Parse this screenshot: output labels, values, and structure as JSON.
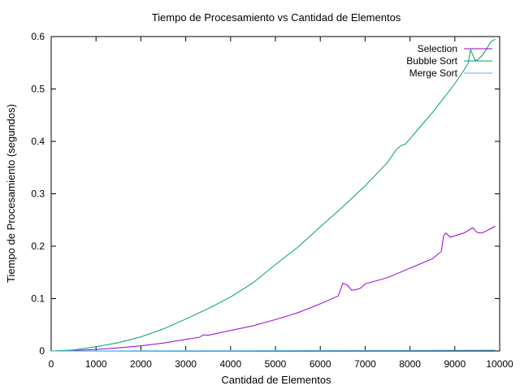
{
  "chart_data": {
    "type": "line",
    "title": "Tiempo de Procesamiento vs Cantidad de Elementos",
    "xlabel": "Cantidad de Elementos",
    "ylabel": "Tiempo de Procesamiento (segundos)",
    "xlim": [
      0,
      10000
    ],
    "ylim": [
      0,
      0.6
    ],
    "x_ticks": [
      0,
      1000,
      2000,
      3000,
      4000,
      5000,
      6000,
      7000,
      8000,
      9000,
      10000
    ],
    "y_ticks": [
      0,
      0.1,
      0.2,
      0.3,
      0.4,
      0.5,
      0.6
    ],
    "x_tick_labels": [
      "0",
      "1000",
      "2000",
      "3000",
      "4000",
      "5000",
      "6000",
      "7000",
      "8000",
      "9000",
      "10000"
    ],
    "y_tick_labels": [
      "0",
      "0.1",
      "0.2",
      "0.3",
      "0.4",
      "0.5",
      "0.6"
    ],
    "grid": false,
    "legend": "top-right",
    "series": [
      {
        "name": "Selection",
        "color": "#9400d3",
        "x": [
          0,
          500,
          1000,
          1500,
          2000,
          2500,
          3000,
          3300,
          3400,
          3500,
          4000,
          4500,
          5000,
          5500,
          6000,
          6400,
          6500,
          6600,
          6700,
          6800,
          6900,
          7000,
          7500,
          8000,
          8500,
          8700,
          8750,
          8800,
          8900,
          9000,
          9200,
          9300,
          9400,
          9500,
          9600,
          9700,
          9900
        ],
        "values": [
          0,
          0.001,
          0.003,
          0.006,
          0.01,
          0.015,
          0.022,
          0.026,
          0.031,
          0.03,
          0.039,
          0.048,
          0.06,
          0.073,
          0.09,
          0.105,
          0.129,
          0.126,
          0.116,
          0.117,
          0.12,
          0.128,
          0.14,
          0.158,
          0.176,
          0.19,
          0.22,
          0.225,
          0.217,
          0.22,
          0.225,
          0.23,
          0.235,
          0.226,
          0.225,
          0.229,
          0.238
        ]
      },
      {
        "name": "Bubble Sort",
        "color": "#009e73",
        "x": [
          0,
          500,
          1000,
          1500,
          2000,
          2500,
          3000,
          3500,
          4000,
          4500,
          5000,
          5500,
          6000,
          6500,
          7000,
          7500,
          7700,
          7800,
          7900,
          8000,
          8500,
          9000,
          9200,
          9300,
          9350,
          9450,
          9500,
          9600,
          9700,
          9800,
          9900
        ],
        "values": [
          0,
          0.002,
          0.008,
          0.016,
          0.027,
          0.042,
          0.061,
          0.081,
          0.103,
          0.13,
          0.165,
          0.198,
          0.237,
          0.275,
          0.315,
          0.36,
          0.385,
          0.392,
          0.395,
          0.405,
          0.455,
          0.51,
          0.535,
          0.55,
          0.575,
          0.555,
          0.555,
          0.563,
          0.575,
          0.59,
          0.595
        ]
      },
      {
        "name": "Merge Sort",
        "color": "#56b4e9",
        "x": [
          0,
          2000,
          4000,
          6000,
          8000,
          9900
        ],
        "values": [
          0,
          0.0003,
          0.0006,
          0.0009,
          0.0012,
          0.0015
        ]
      }
    ]
  }
}
